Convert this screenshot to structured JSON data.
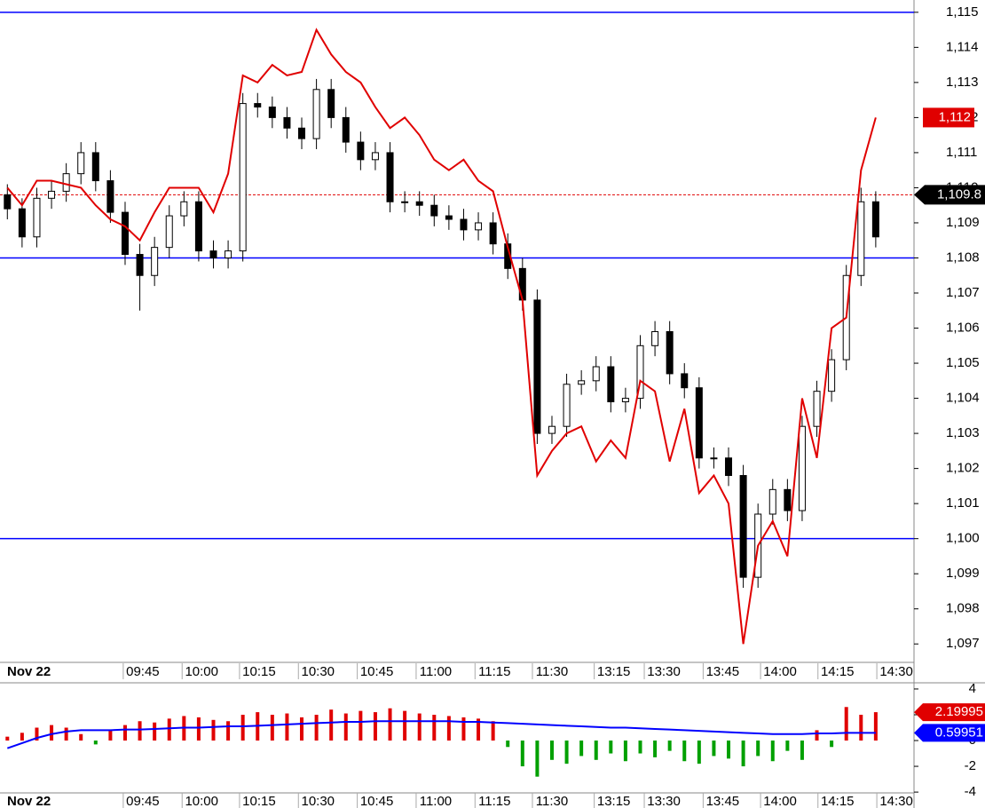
{
  "chart_data": [
    {
      "type": "candlestick",
      "date_label": "Nov 22",
      "xlim": [
        -0.5,
        61.6
      ],
      "xticks": [
        {
          "value": 9.2,
          "label": "09:45"
        },
        {
          "value": 13.2,
          "label": "10:00"
        },
        {
          "value": 17.1,
          "label": "10:15"
        },
        {
          "value": 21.1,
          "label": "10:30"
        },
        {
          "value": 25.1,
          "label": "10:45"
        },
        {
          "value": 29.1,
          "label": "11:00"
        },
        {
          "value": 33.1,
          "label": "11:15"
        },
        {
          "value": 37.0,
          "label": "11:30"
        },
        {
          "value": 41.2,
          "label": "13:15"
        },
        {
          "value": 44.6,
          "label": "13:30"
        },
        {
          "value": 48.6,
          "label": "13:45"
        },
        {
          "value": 52.5,
          "label": "14:00"
        },
        {
          "value": 56.4,
          "label": "14:15"
        },
        {
          "value": 60.4,
          "label": "14:30"
        }
      ],
      "ylim": [
        1096.5,
        1115.35
      ],
      "yticks": [
        {
          "value": 1097,
          "label": "1,097"
        },
        {
          "value": 1098,
          "label": "1,098"
        },
        {
          "value": 1099,
          "label": "1,099"
        },
        {
          "value": 1100,
          "label": "1,100"
        },
        {
          "value": 1101,
          "label": "1,101"
        },
        {
          "value": 1102,
          "label": "1,102"
        },
        {
          "value": 1103,
          "label": "1,103"
        },
        {
          "value": 1104,
          "label": "1,104"
        },
        {
          "value": 1105,
          "label": "1,105"
        },
        {
          "value": 1106,
          "label": "1,106"
        },
        {
          "value": 1107,
          "label": "1,107"
        },
        {
          "value": 1108,
          "label": "1,108"
        },
        {
          "value": 1109,
          "label": "1,109"
        },
        {
          "value": 1110,
          "label": "1,110"
        },
        {
          "value": 1111,
          "label": "1,111"
        },
        {
          "value": 1112,
          "label": "1,112"
        },
        {
          "value": 1113,
          "label": "1,113"
        },
        {
          "value": 1114,
          "label": "1,114"
        },
        {
          "value": 1115,
          "label": "1,115"
        }
      ],
      "hlines": [
        1115,
        1108,
        1100
      ],
      "hline_color": "#0000ff",
      "up_color": "#ffffff",
      "down_color": "#000000",
      "open": [
        1109.8,
        1109.4,
        1108.6,
        1109.7,
        1109.9,
        1110.4,
        1111,
        1110.2,
        1109.3,
        1108.1,
        1107.5,
        1108.3,
        1109.2,
        1109.6,
        1108.2,
        1108,
        1108.2,
        1112.4,
        1112.3,
        1112,
        1111.7,
        1111.4,
        1112.8,
        1112,
        1111.3,
        1110.8,
        1111,
        1109.6,
        1109.6,
        1109.5,
        1109.2,
        1109.1,
        1108.8,
        1109,
        1108.4,
        1107.7,
        1106.8,
        1103,
        1103.2,
        1104.4,
        1104.5,
        1104.9,
        1103.9,
        1104,
        1105.5,
        1105.9,
        1104.7,
        1104.3,
        1102.3,
        1102.3,
        1101.8,
        1098.9,
        1100.7,
        1101.4,
        1100.8,
        1103.2,
        1104.2,
        1105.1,
        1107.5,
        1109.6
      ],
      "high": [
        1110.1,
        1109.7,
        1110,
        1110.2,
        1110.7,
        1111.3,
        1111.3,
        1110.5,
        1109.6,
        1108.4,
        1108.6,
        1109.5,
        1109.9,
        1109.9,
        1108.5,
        1108.5,
        1112.7,
        1112.7,
        1112.6,
        1112.3,
        1112,
        1113.1,
        1113.1,
        1112.3,
        1111.6,
        1111.3,
        1111.3,
        1109.9,
        1109.9,
        1109.8,
        1109.5,
        1109.4,
        1109.3,
        1109.3,
        1108.7,
        1108,
        1107.1,
        1103.5,
        1104.7,
        1104.8,
        1105.2,
        1105.2,
        1104.3,
        1105.8,
        1106.2,
        1106.2,
        1105,
        1104.6,
        1102.6,
        1102.6,
        1102.1,
        1101,
        1101.7,
        1101.7,
        1103.5,
        1104.5,
        1105.4,
        1107.8,
        1110,
        1109.9
      ],
      "low": [
        1109.1,
        1108.3,
        1108.3,
        1109.4,
        1109.6,
        1110.1,
        1109.9,
        1109,
        1107.8,
        1106.5,
        1107.2,
        1108,
        1108.9,
        1107.9,
        1107.7,
        1107.7,
        1107.9,
        1112,
        1111.7,
        1111.4,
        1111.1,
        1111.1,
        1111.7,
        1111,
        1110.5,
        1110.5,
        1109.3,
        1109.3,
        1109.2,
        1108.9,
        1108.8,
        1108.5,
        1108.5,
        1108.1,
        1107.4,
        1106.5,
        1102.7,
        1102.7,
        1102.9,
        1104.1,
        1104.2,
        1103.6,
        1103.6,
        1103.7,
        1105.2,
        1104.4,
        1104,
        1102,
        1102,
        1101.5,
        1098.6,
        1098.6,
        1100.4,
        1100.5,
        1100.5,
        1102.9,
        1103.9,
        1104.8,
        1107.2,
        1108.3
      ],
      "close": [
        1109.4,
        1108.6,
        1109.7,
        1109.9,
        1110.4,
        1111,
        1110.2,
        1109.3,
        1108.1,
        1107.5,
        1108.3,
        1109.2,
        1109.6,
        1108.2,
        1108,
        1108.2,
        1112.4,
        1112.3,
        1112,
        1111.7,
        1111.4,
        1112.8,
        1112,
        1111.3,
        1110.8,
        1111,
        1109.6,
        1109.6,
        1109.5,
        1109.2,
        1109.1,
        1108.8,
        1109,
        1108.4,
        1107.7,
        1106.8,
        1103,
        1103.2,
        1104.4,
        1104.5,
        1104.9,
        1103.9,
        1104,
        1105.5,
        1105.9,
        1104.7,
        1104.3,
        1102.3,
        1102.3,
        1101.8,
        1098.9,
        1100.7,
        1101.4,
        1100.8,
        1103.2,
        1104.2,
        1105.1,
        1107.5,
        1109.6,
        1108.6
      ],
      "line": {
        "color": "#e00000",
        "values": [
          1110,
          1109.5,
          1110.2,
          1110.2,
          1110.1,
          1110,
          1109.5,
          1109.1,
          1108.9,
          1108.5,
          1109.3,
          1110,
          1110,
          1110,
          1109.3,
          1110.4,
          1113.2,
          1113,
          1113.5,
          1113.2,
          1113.3,
          1114.5,
          1113.8,
          1113.3,
          1113,
          1112.3,
          1111.7,
          1112,
          1111.5,
          1110.8,
          1110.5,
          1110.8,
          1110.2,
          1109.9,
          1108.3,
          1106.8,
          1101.8,
          1102.5,
          1103,
          1103.2,
          1102.2,
          1102.8,
          1102.3,
          1104.5,
          1104.2,
          1102.2,
          1103.7,
          1101.3,
          1101.8,
          1101,
          1097,
          1099.8,
          1100.5,
          1099.5,
          1104,
          1102.3,
          1106,
          1106.3,
          1110.5,
          1112
        ]
      },
      "markers": [
        {
          "value": 1112,
          "label": "1,112",
          "color": "#e00000",
          "dashed": false
        },
        {
          "value": 1109.8,
          "label": "1,109.8",
          "color": "#000000",
          "dashed": true
        }
      ]
    },
    {
      "type": "bar",
      "date_label": "Nov 22",
      "xlim": [
        -0.5,
        61.6
      ],
      "xticks": [
        {
          "value": 9.2,
          "label": "09:45"
        },
        {
          "value": 13.2,
          "label": "10:00"
        },
        {
          "value": 17.1,
          "label": "10:15"
        },
        {
          "value": 21.1,
          "label": "10:30"
        },
        {
          "value": 25.1,
          "label": "10:45"
        },
        {
          "value": 29.1,
          "label": "11:00"
        },
        {
          "value": 33.1,
          "label": "11:15"
        },
        {
          "value": 37.0,
          "label": "11:30"
        },
        {
          "value": 41.2,
          "label": "13:15"
        },
        {
          "value": 44.6,
          "label": "13:30"
        },
        {
          "value": 48.6,
          "label": "13:45"
        },
        {
          "value": 52.5,
          "label": "14:00"
        },
        {
          "value": 56.4,
          "label": "14:15"
        },
        {
          "value": 60.4,
          "label": "14:30"
        }
      ],
      "ylim": [
        -4.2,
        4.41
      ],
      "yticks": [
        4,
        2,
        0,
        -2,
        -4
      ],
      "up_color": "#e00000",
      "down_color": "#00a000",
      "values": [
        0.3,
        0.6,
        1.0,
        1.2,
        1.0,
        0.5,
        -0.3,
        0.8,
        1.2,
        1.5,
        1.4,
        1.7,
        1.9,
        1.8,
        1.6,
        1.5,
        2.0,
        2.2,
        2.0,
        2.1,
        1.8,
        2.0,
        2.4,
        2.1,
        2.3,
        2.2,
        2.5,
        2.3,
        2.1,
        2.0,
        1.9,
        1.8,
        1.7,
        1.5,
        -0.5,
        -2.0,
        -2.8,
        -1.5,
        -1.8,
        -1.2,
        -1.5,
        -1.0,
        -1.6,
        -1.0,
        -1.3,
        -0.8,
        -1.6,
        -1.8,
        -1.2,
        -1.4,
        -2.0,
        -1.2,
        -1.6,
        -0.8,
        -1.5,
        0.8,
        -0.5,
        2.6,
        2.0,
        2.2
      ],
      "line": {
        "color": "#0000ff",
        "values": [
          -0.6,
          -0.2,
          0.2,
          0.5,
          0.7,
          0.8,
          0.8,
          0.8,
          0.85,
          0.85,
          0.9,
          0.95,
          1.0,
          1.0,
          1.05,
          1.1,
          1.1,
          1.15,
          1.2,
          1.25,
          1.3,
          1.35,
          1.4,
          1.45,
          1.45,
          1.5,
          1.5,
          1.5,
          1.5,
          1.5,
          1.5,
          1.45,
          1.45,
          1.4,
          1.35,
          1.3,
          1.25,
          1.2,
          1.15,
          1.1,
          1.05,
          1.0,
          1.0,
          0.95,
          0.9,
          0.85,
          0.8,
          0.75,
          0.7,
          0.65,
          0.6,
          0.55,
          0.5,
          0.5,
          0.5,
          0.55,
          0.55,
          0.6,
          0.6,
          0.6
        ]
      },
      "markers": [
        {
          "value": 2.19995,
          "color": "#e00000"
        },
        {
          "value": 0.59951,
          "color": "#0000ff"
        }
      ]
    }
  ]
}
